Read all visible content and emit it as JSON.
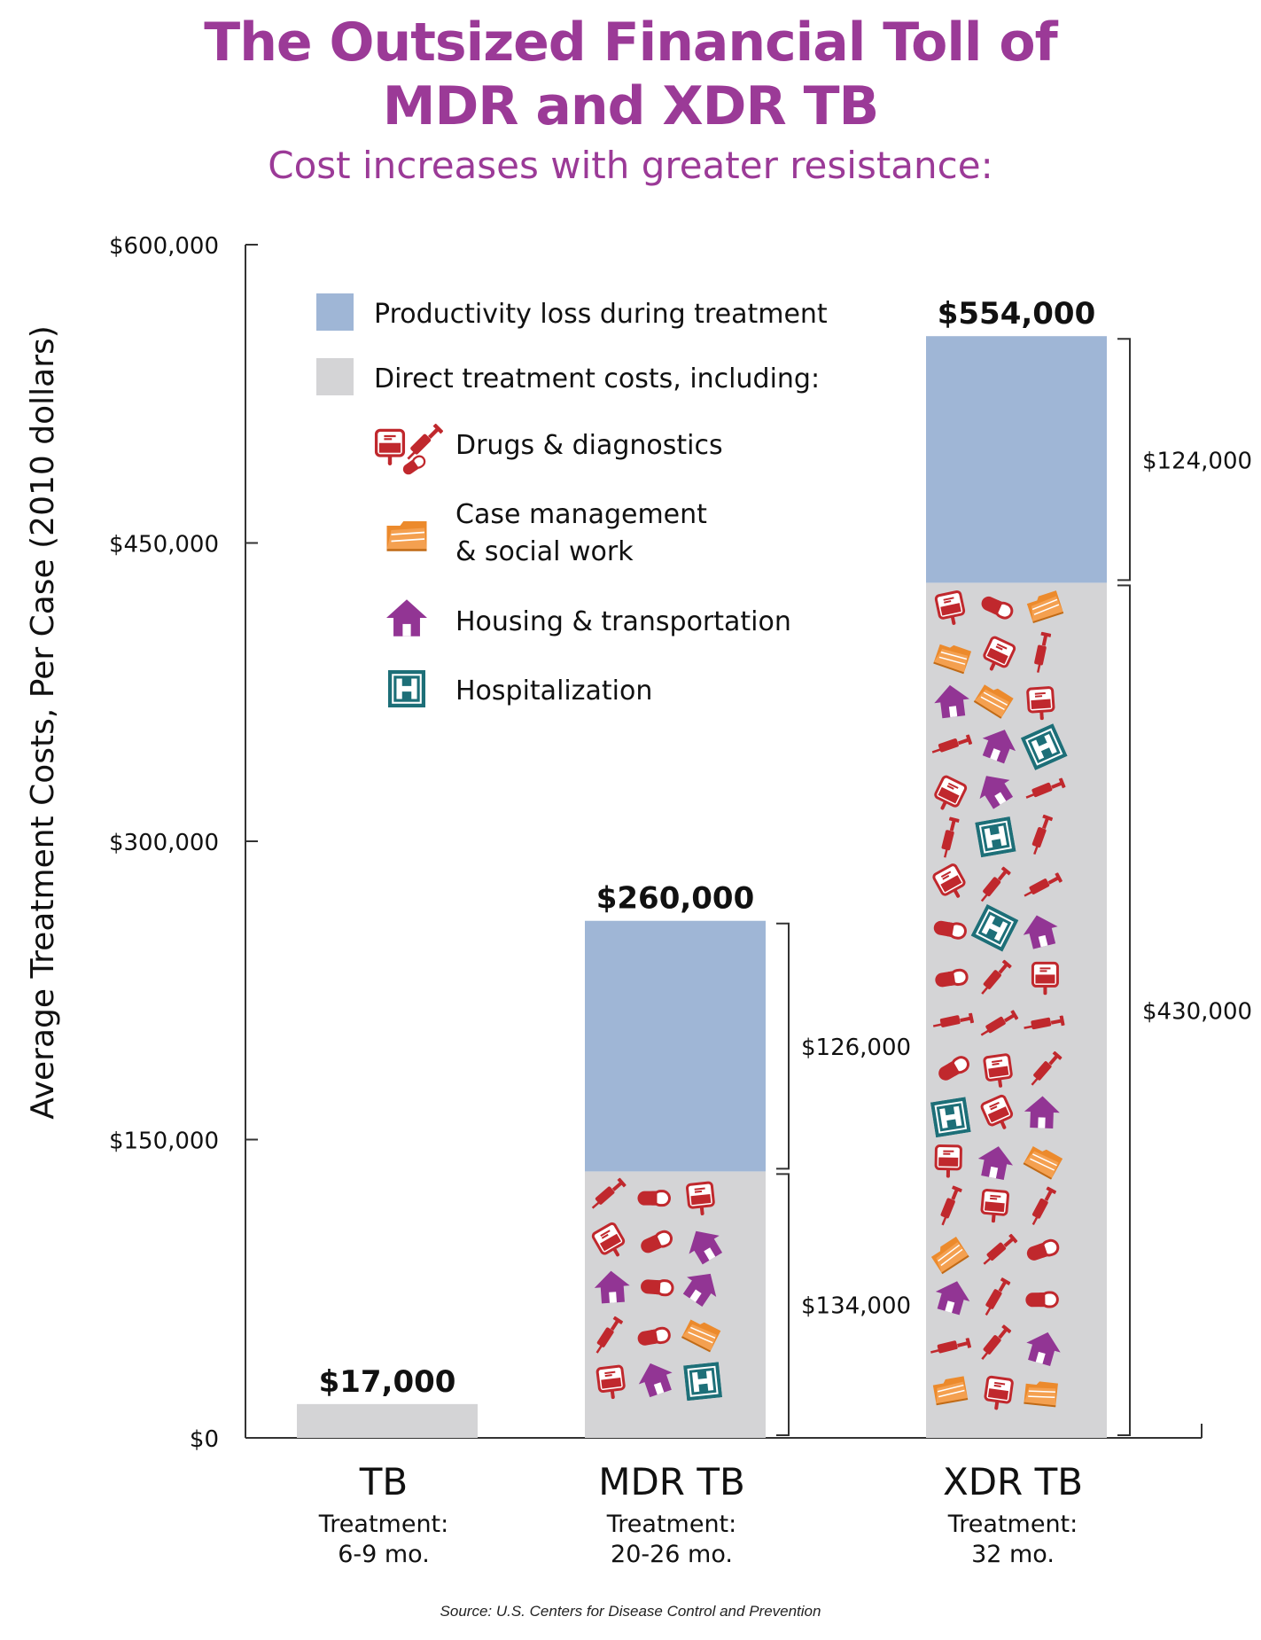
{
  "title_line1": "The Outsized Financial Toll of",
  "title_line2": "MDR and XDR TB",
  "subtitle": "Cost increases with greater resistance:",
  "source": "Source: U.S. Centers for Disease Control and Prevention",
  "colors": {
    "title": "#9b3a97",
    "productivity": "#9fb6d6",
    "direct": "#d4d4d6",
    "drugs": "#c0282d",
    "case": "#ec8a2c",
    "housing": "#923594",
    "hospital": "#1d6f78"
  },
  "legend": {
    "productivity": "Productivity loss during treatment",
    "direct": "Direct treatment costs, including:",
    "drugs": "Drugs & diagnostics",
    "case_line1": "Case management",
    "case_line2": "& social work",
    "housing": "Housing & transportation",
    "hospital": "Hospitalization"
  },
  "chart_data": {
    "type": "bar",
    "stacked": true,
    "ylabel": "Average Treatment Costs, Per Case (2010 dollars)",
    "ylim": [
      0,
      600000
    ],
    "yticks": [
      0,
      150000,
      300000,
      450000,
      600000
    ],
    "ytick_labels": [
      "$0",
      "$150,000",
      "$300,000",
      "$450,000",
      "$600,000"
    ],
    "categories": [
      "TB",
      "MDR TB",
      "XDR TB"
    ],
    "category_notes": [
      [
        "Treatment:",
        "6-9 mo."
      ],
      [
        "Treatment:",
        "20-26 mo."
      ],
      [
        "Treatment:",
        "32 mo."
      ]
    ],
    "series": [
      {
        "name": "Direct treatment costs, including:",
        "values": [
          17000,
          134000,
          430000
        ]
      },
      {
        "name": "Productivity loss during treatment",
        "values": [
          0,
          126000,
          124000
        ]
      }
    ],
    "totals": [
      17000,
      260000,
      554000
    ],
    "total_labels": [
      "$17,000",
      "$260,000",
      "$554,000"
    ],
    "segment_labels": [
      [],
      [
        "$134,000",
        "$126,000"
      ],
      [
        "$430,000",
        "$124,000"
      ]
    ]
  }
}
